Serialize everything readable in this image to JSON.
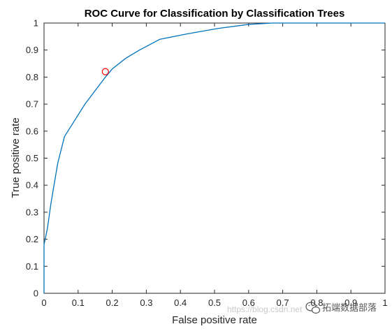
{
  "chart_data": {
    "type": "line",
    "title": "ROC Curve for Classification by Classification Trees",
    "xlabel": "False positive rate",
    "ylabel": "True positive rate",
    "xlim": [
      0,
      1
    ],
    "ylim": [
      0,
      1
    ],
    "x_ticks": [
      "0",
      "0.1",
      "0.2",
      "0.3",
      "0.4",
      "0.5",
      "0.6",
      "0.7",
      "0.8",
      "0.9",
      "1"
    ],
    "y_ticks": [
      "0",
      "0.1",
      "0.2",
      "0.3",
      "0.4",
      "0.5",
      "0.6",
      "0.7",
      "0.8",
      "0.9",
      "1"
    ],
    "grid": false,
    "series": [
      {
        "color": "#0072BD",
        "x": [
          0,
          0,
          0.01,
          0.02,
          0.04,
          0.06,
          0.08,
          0.12,
          0.18,
          0.2,
          0.24,
          0.28,
          0.34,
          0.42,
          0.51,
          0.6,
          0.67,
          0.8,
          1.0
        ],
        "y": [
          0,
          0.18,
          0.24,
          0.33,
          0.48,
          0.58,
          0.62,
          0.7,
          0.8,
          0.83,
          0.87,
          0.9,
          0.94,
          0.96,
          0.98,
          0.995,
          1.0,
          1.0,
          1.0
        ]
      }
    ],
    "markers": [
      {
        "x": 0.18,
        "y": 0.82,
        "shape": "circle",
        "color": "#FF0000"
      }
    ]
  },
  "watermark": {
    "text": "拓端数据部落",
    "icon": "wechat-icon",
    "faint_text": "https://blog.csdn.net"
  }
}
